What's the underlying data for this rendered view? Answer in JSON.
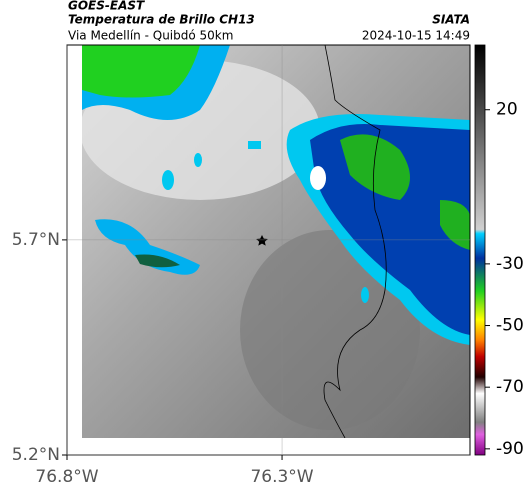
{
  "header": {
    "source": "GOES-EAST",
    "product": "Temperatura de Brillo CH13",
    "route": "Via Medellín - Quibdó 50km",
    "org": "SIATA",
    "timestamp": "2024-10-15 14:49"
  },
  "map": {
    "xlim": [
      -76.8,
      -75.863
    ],
    "ylim": [
      5.2,
      6.153
    ],
    "xticks": [
      {
        "value": -76.8,
        "label": "76.8°W"
      },
      {
        "value": -76.3,
        "label": "76.3°W"
      }
    ],
    "yticks": [
      {
        "value": 5.2,
        "label": "5.2°N"
      },
      {
        "value": 5.7,
        "label": "5.7°N"
      }
    ]
  },
  "colorbar": {
    "lim": [
      -92,
      41
    ],
    "ticks": [
      20,
      -30,
      -50,
      -70,
      -90
    ]
  }
}
